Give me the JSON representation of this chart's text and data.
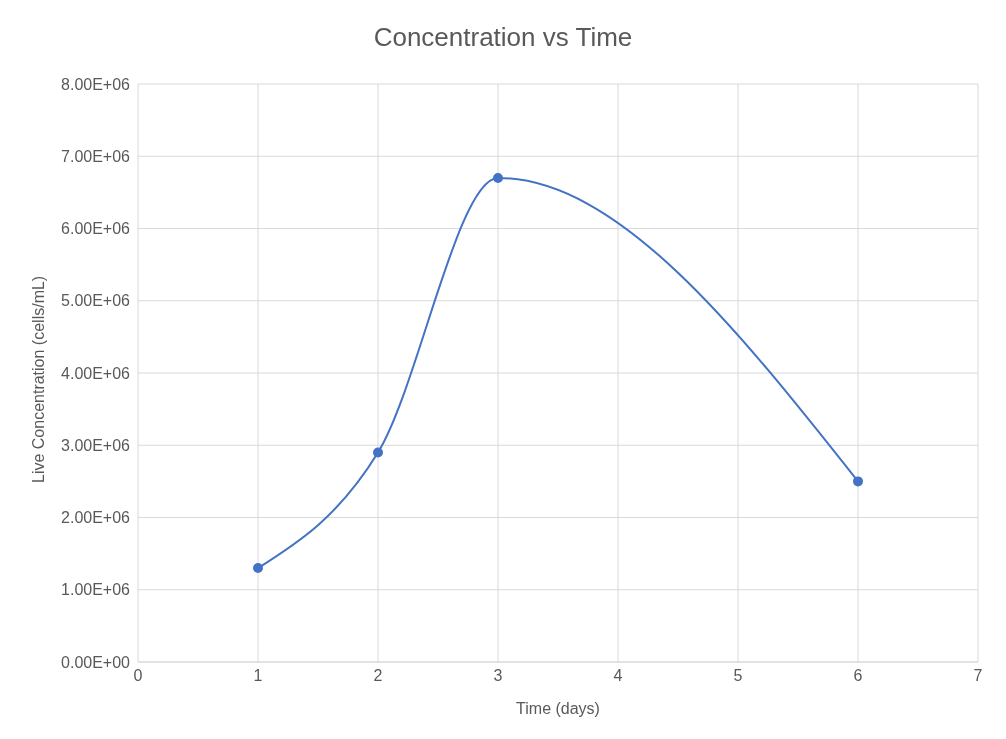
{
  "chart_data": {
    "type": "line",
    "title": "Concentration vs Time",
    "xlabel": "Time (days)",
    "ylabel": "Live Concentration (cells/mL)",
    "x": [
      1,
      2,
      3,
      6
    ],
    "series": [
      {
        "color": "#4472c4",
        "values": [
          1300000,
          2900000,
          6700000,
          2500000
        ]
      }
    ],
    "xlim": [
      0,
      7
    ],
    "xticks": [
      0,
      1,
      2,
      3,
      4,
      5,
      6,
      7
    ],
    "ylim": [
      0,
      8000000
    ],
    "yticks": [
      {
        "value": 0,
        "label": "0.00E+00"
      },
      {
        "value": 1000000,
        "label": "1.00E+06"
      },
      {
        "value": 2000000,
        "label": "2.00E+06"
      },
      {
        "value": 3000000,
        "label": "3.00E+06"
      },
      {
        "value": 4000000,
        "label": "4.00E+06"
      },
      {
        "value": 5000000,
        "label": "5.00E+06"
      },
      {
        "value": 6000000,
        "label": "6.00E+06"
      },
      {
        "value": 7000000,
        "label": "7.00E+06"
      },
      {
        "value": 8000000,
        "label": "8.00E+06"
      }
    ],
    "grid": true,
    "marker": "circle",
    "line_style": "solid",
    "legend": false
  }
}
